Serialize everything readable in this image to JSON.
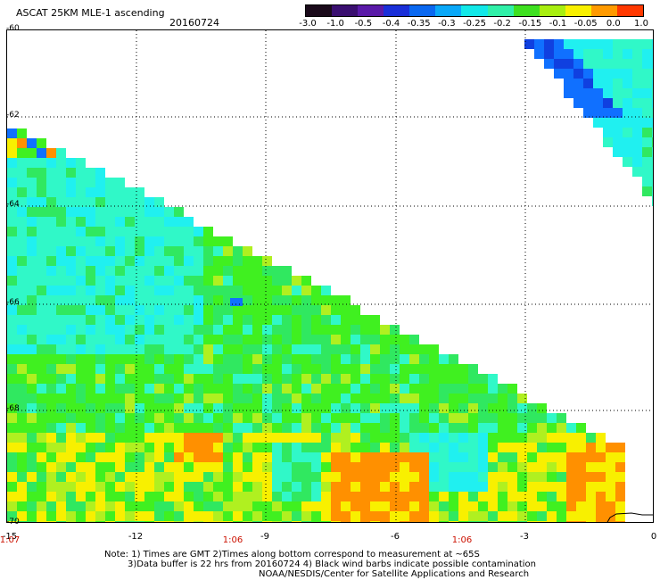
{
  "header": {
    "title": "ASCAT 25KM MLE-1 ascending",
    "date": "20160724"
  },
  "colorbar": {
    "labels": [
      "-3.0",
      "-1.0",
      "-0.5",
      "-0.4",
      "-0.35",
      "-0.3",
      "-0.25",
      "-0.2",
      "-0.15",
      "-0.1",
      "-0.05",
      "0.0",
      "1.0"
    ],
    "colors": [
      "#1a0a1a",
      "#3a0f70",
      "#5a1aa8",
      "#1a2fd8",
      "#0a68f0",
      "#0aa8f8",
      "#12e8e8",
      "#30f0a8",
      "#3ee020",
      "#a8ee10",
      "#f8f000",
      "#ff9a00",
      "#ff3800"
    ]
  },
  "map": {
    "y_labels": [
      "-60",
      "-62",
      "-64",
      "-66",
      "-68",
      "-70"
    ],
    "x_labels": [
      "-15",
      "-12",
      "-9",
      "-6",
      "-3",
      "0"
    ],
    "time_labels": [
      "1:07",
      "1:06",
      "1:06"
    ],
    "lat_range": [
      -70,
      -60
    ],
    "lon_range": [
      -15,
      0
    ],
    "colors": {
      "cyan": "#20f0f0",
      "aqua": "#30f8c8",
      "green": "#30e860",
      "lime": "#40f020",
      "yellowgreen": "#b0f020",
      "yellow": "#f8f000",
      "orange": "#ff9000",
      "red": "#ff3000",
      "blue": "#1070ff",
      "darkblue": "#1040e0"
    }
  },
  "notes": {
    "line1": "Note: 1) Times are GMT 2)Times along bottom correspond to measurement at ~65S",
    "line2": "3)Data buffer is 22 hrs from 20160724 4) Black wind barbs indicate possible contamination",
    "line3": "NOAA/NESDIS/Center for Satellite Applications and Research"
  }
}
